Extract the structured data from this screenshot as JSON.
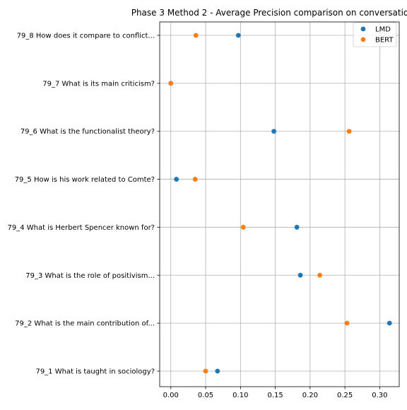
{
  "chart_data": {
    "type": "scatter",
    "title": "Phase 3 Method 2 - Average Precision comparison on conversatio",
    "xlabel": "",
    "ylabel": "",
    "xlim": [
      -0.016,
      0.328
    ],
    "xticks": [
      0.0,
      0.05,
      0.1,
      0.15,
      0.2,
      0.25,
      0.3
    ],
    "xtick_labels": [
      "0.00",
      "0.05",
      "0.10",
      "0.15",
      "0.20",
      "0.25",
      "0.30"
    ],
    "grid": true,
    "legend_position": "top-right",
    "categories": [
      "79_1 What is taught in sociology?",
      "79_2 What is the main contribution of...",
      "79_3 What is the role of positivism...",
      "79_4 What is Herbert Spencer known for?",
      "79_5 How is his work related to Comte?",
      "79_6 What is the functionalist theory?",
      "79_7 What is its main criticism?",
      "79_8 How does it compare to conflict..."
    ],
    "series": [
      {
        "name": "LMD",
        "color": "#1f77b4",
        "values": [
          0.067,
          0.314,
          0.186,
          0.181,
          0.008,
          0.148,
          0.0,
          0.097
        ]
      },
      {
        "name": "BERT",
        "color": "#ff7f0e",
        "values": [
          0.05,
          0.253,
          0.214,
          0.104,
          0.035,
          0.256,
          0.0,
          0.036
        ]
      }
    ]
  }
}
